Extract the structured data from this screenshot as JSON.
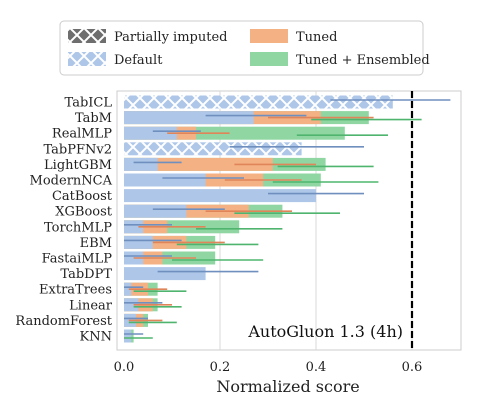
{
  "chart_data": {
    "type": "bar",
    "orientation": "horizontal",
    "xlabel": "Normalized score",
    "xlim": [
      0.0,
      0.7
    ],
    "xticks": [
      "0.0",
      "0.2",
      "0.4",
      "0.6"
    ],
    "grid": true,
    "legend": {
      "placement": "top",
      "entries": [
        "Partially imputed",
        "Tuned",
        "Default",
        "Tuned + Ensembled"
      ]
    },
    "colors": {
      "default": "#aec7e8",
      "tuned": "#f4b183",
      "ensembled": "#8fd6a2",
      "default_err": "#6f8fbf",
      "tuned_err": "#e0855a",
      "ensembled_err": "#4fb56e",
      "hatch_legend": "#6e6e6e",
      "reference_line": "#000000"
    },
    "categories": [
      "TabICL",
      "TabM",
      "RealMLP",
      "TabPFNv2",
      "LightGBM",
      "ModernNCA",
      "CatBoost",
      "XGBoost",
      "TorchMLP",
      "EBM",
      "FastaiMLP",
      "TabDPT",
      "ExtraTrees",
      "Linear",
      "RandomForest",
      "KNN"
    ],
    "series": [
      {
        "name": "Default",
        "values": [
          0.56,
          0.27,
          0.11,
          0.37,
          0.07,
          0.17,
          0.4,
          0.13,
          0.04,
          0.06,
          0.04,
          0.17,
          0.015,
          0.03,
          0.025,
          0.015
        ],
        "err": [
          [
            0.43,
            0.68
          ],
          [
            0.17,
            0.38
          ],
          [
            0.06,
            0.16
          ],
          [
            0.22,
            0.5
          ],
          [
            0.02,
            0.12
          ],
          [
            0.08,
            0.25
          ],
          [
            0.3,
            0.5
          ],
          [
            0.06,
            0.21
          ],
          [
            0.0,
            0.1
          ],
          [
            0.0,
            0.12
          ],
          [
            0.0,
            0.1
          ],
          [
            0.07,
            0.28
          ],
          [
            0.0,
            0.04
          ],
          [
            0.0,
            0.08
          ],
          [
            0.0,
            0.05
          ],
          [
            0.0,
            0.04
          ]
        ],
        "partially_imputed": [
          true,
          false,
          false,
          true,
          false,
          false,
          false,
          false,
          false,
          false,
          false,
          false,
          false,
          false,
          false,
          false
        ]
      },
      {
        "name": "Tuned",
        "values": [
          null,
          0.41,
          0.15,
          null,
          0.31,
          0.29,
          null,
          0.26,
          0.09,
          0.13,
          0.08,
          null,
          0.05,
          0.06,
          0.04,
          null
        ],
        "err": [
          null,
          [
            0.3,
            0.52
          ],
          [
            0.09,
            0.22
          ],
          null,
          [
            0.23,
            0.4
          ],
          [
            0.21,
            0.37
          ],
          null,
          [
            0.17,
            0.35
          ],
          [
            0.03,
            0.17
          ],
          [
            0.06,
            0.21
          ],
          [
            0.02,
            0.15
          ],
          null,
          [
            0.01,
            0.09
          ],
          [
            0.02,
            0.1
          ],
          [
            0.01,
            0.08
          ],
          null
        ]
      },
      {
        "name": "Tuned + Ensembled",
        "values": [
          null,
          0.51,
          0.46,
          null,
          0.42,
          0.41,
          null,
          0.33,
          0.24,
          0.19,
          0.19,
          null,
          0.07,
          0.07,
          0.05,
          0.02
        ],
        "err": [
          null,
          [
            0.39,
            0.62
          ],
          [
            0.36,
            0.55
          ],
          null,
          [
            0.32,
            0.52
          ],
          [
            0.31,
            0.53
          ],
          null,
          [
            0.23,
            0.45
          ],
          [
            0.15,
            0.33
          ],
          [
            0.11,
            0.28
          ],
          [
            0.1,
            0.29
          ],
          null,
          [
            0.02,
            0.13
          ],
          [
            0.02,
            0.12
          ],
          [
            0.01,
            0.11
          ],
          [
            0.0,
            0.06
          ]
        ]
      }
    ],
    "reference": {
      "value": 0.6,
      "label": "AutoGluon 1.3 (4h)"
    }
  }
}
